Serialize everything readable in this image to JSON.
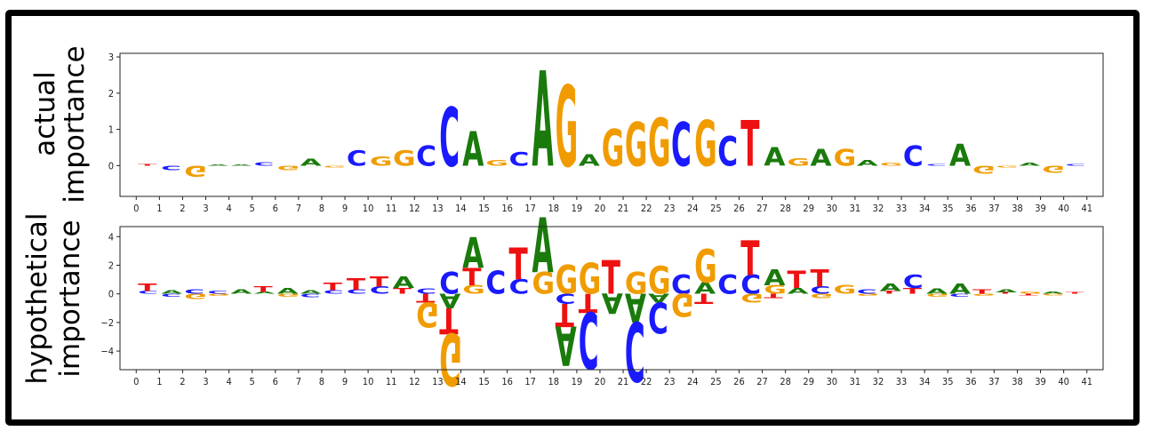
{
  "chart_data": [
    {
      "type": "sequence-logo",
      "ylabel": [
        "actual",
        "importance"
      ],
      "ylim": [
        -0.85,
        3.1
      ],
      "yticks": [
        0,
        1,
        2,
        3
      ],
      "xticks": [
        0,
        1,
        2,
        3,
        4,
        5,
        6,
        7,
        8,
        9,
        10,
        11,
        12,
        13,
        14,
        15,
        16,
        17,
        18,
        19,
        20,
        21,
        22,
        23,
        24,
        25,
        26,
        27,
        28,
        29,
        30,
        31,
        32,
        33,
        34,
        35,
        36,
        37,
        38,
        39,
        40,
        41
      ],
      "positions": [
        {
          "pos": 0,
          "letters": [
            {
              "base": "T",
              "value": 0.04
            }
          ]
        },
        {
          "pos": 1,
          "letters": [
            {
              "base": "C",
              "value": -0.12
            }
          ]
        },
        {
          "pos": 2,
          "letters": [
            {
              "base": "G",
              "value": -0.3
            }
          ]
        },
        {
          "pos": 3,
          "letters": [
            {
              "base": "A",
              "value": 0.03
            }
          ]
        },
        {
          "pos": 4,
          "letters": [
            {
              "base": "A",
              "value": 0.03
            }
          ]
        },
        {
          "pos": 5,
          "letters": [
            {
              "base": "C",
              "value": 0.1
            }
          ]
        },
        {
          "pos": 6,
          "letters": [
            {
              "base": "G",
              "value": -0.12
            }
          ]
        },
        {
          "pos": 7,
          "letters": [
            {
              "base": "A",
              "value": 0.18
            }
          ]
        },
        {
          "pos": 8,
          "letters": [
            {
              "base": "G",
              "value": -0.05
            }
          ]
        },
        {
          "pos": 9,
          "letters": [
            {
              "base": "C",
              "value": 0.42
            }
          ]
        },
        {
          "pos": 10,
          "letters": [
            {
              "base": "G",
              "value": 0.25
            }
          ]
        },
        {
          "pos": 11,
          "letters": [
            {
              "base": "G",
              "value": 0.42
            }
          ]
        },
        {
          "pos": 12,
          "letters": [
            {
              "base": "C",
              "value": 0.55
            }
          ]
        },
        {
          "pos": 13,
          "letters": [
            {
              "base": "C",
              "value": 1.6
            }
          ]
        },
        {
          "pos": 14,
          "letters": [
            {
              "base": "A",
              "value": 0.95
            }
          ]
        },
        {
          "pos": 15,
          "letters": [
            {
              "base": "G",
              "value": 0.15
            }
          ]
        },
        {
          "pos": 16,
          "letters": [
            {
              "base": "C",
              "value": 0.38
            }
          ]
        },
        {
          "pos": 17,
          "letters": [
            {
              "base": "A",
              "value": 2.6
            }
          ]
        },
        {
          "pos": 18,
          "letters": [
            {
              "base": "G",
              "value": 2.2
            }
          ]
        },
        {
          "pos": 19,
          "letters": [
            {
              "base": "A",
              "value": 0.32
            }
          ]
        },
        {
          "pos": 20,
          "letters": [
            {
              "base": "G",
              "value": 1.0
            }
          ]
        },
        {
          "pos": 21,
          "letters": [
            {
              "base": "G",
              "value": 1.2
            }
          ]
        },
        {
          "pos": 22,
          "letters": [
            {
              "base": "G",
              "value": 1.3
            }
          ]
        },
        {
          "pos": 23,
          "letters": [
            {
              "base": "C",
              "value": 1.2
            }
          ]
        },
        {
          "pos": 24,
          "letters": [
            {
              "base": "G",
              "value": 1.25
            }
          ]
        },
        {
          "pos": 25,
          "letters": [
            {
              "base": "C",
              "value": 0.8
            }
          ]
        },
        {
          "pos": 26,
          "letters": [
            {
              "base": "T",
              "value": 1.25
            }
          ]
        },
        {
          "pos": 27,
          "letters": [
            {
              "base": "A",
              "value": 0.5
            }
          ]
        },
        {
          "pos": 28,
          "letters": [
            {
              "base": "G",
              "value": 0.2
            }
          ]
        },
        {
          "pos": 29,
          "letters": [
            {
              "base": "A",
              "value": 0.45
            }
          ]
        },
        {
          "pos": 30,
          "letters": [
            {
              "base": "G",
              "value": 0.45
            }
          ]
        },
        {
          "pos": 31,
          "letters": [
            {
              "base": "A",
              "value": 0.15
            }
          ]
        },
        {
          "pos": 32,
          "letters": [
            {
              "base": "G",
              "value": 0.08
            }
          ]
        },
        {
          "pos": 33,
          "letters": [
            {
              "base": "C",
              "value": 0.55
            }
          ]
        },
        {
          "pos": 34,
          "letters": [
            {
              "base": "C",
              "value": 0.05
            }
          ]
        },
        {
          "pos": 35,
          "letters": [
            {
              "base": "A",
              "value": 0.6
            }
          ]
        },
        {
          "pos": 36,
          "letters": [
            {
              "base": "G",
              "value": -0.22
            }
          ]
        },
        {
          "pos": 37,
          "letters": [
            {
              "base": "G",
              "value": -0.05
            }
          ]
        },
        {
          "pos": 38,
          "letters": [
            {
              "base": "A",
              "value": 0.08
            }
          ]
        },
        {
          "pos": 39,
          "letters": [
            {
              "base": "G",
              "value": -0.18
            }
          ]
        },
        {
          "pos": 40,
          "letters": [
            {
              "base": "C",
              "value": 0.05
            }
          ]
        }
      ]
    },
    {
      "type": "sequence-logo",
      "ylabel": [
        "hypothetical",
        "importance"
      ],
      "ylim": [
        -5.3,
        4.7
      ],
      "yticks": [
        -4,
        -2,
        0,
        2,
        4
      ],
      "xticks": [
        0,
        1,
        2,
        3,
        4,
        5,
        6,
        7,
        8,
        9,
        10,
        11,
        12,
        13,
        14,
        15,
        16,
        17,
        18,
        19,
        20,
        21,
        22,
        23,
        24,
        25,
        26,
        27,
        28,
        29,
        30,
        31,
        32,
        33,
        34,
        35,
        36,
        37,
        38,
        39,
        40,
        41
      ],
      "positions": [
        {
          "pos": 0,
          "letters": [
            {
              "base": "T",
              "value": 0.5
            },
            {
              "base": "C",
              "value": 0.2
            }
          ]
        },
        {
          "pos": 1,
          "letters": [
            {
              "base": "A",
              "value": 0.25
            },
            {
              "base": "C",
              "value": -0.2
            }
          ]
        },
        {
          "pos": 2,
          "letters": [
            {
              "base": "C",
              "value": 0.3
            },
            {
              "base": "G",
              "value": -0.35
            }
          ]
        },
        {
          "pos": 3,
          "letters": [
            {
              "base": "C",
              "value": 0.2
            },
            {
              "base": "G",
              "value": -0.15
            }
          ]
        },
        {
          "pos": 4,
          "letters": [
            {
              "base": "A",
              "value": 0.3
            }
          ]
        },
        {
          "pos": 5,
          "letters": [
            {
              "base": "T",
              "value": 0.4
            },
            {
              "base": "A",
              "value": 0.15
            }
          ]
        },
        {
          "pos": 6,
          "letters": [
            {
              "base": "A",
              "value": 0.4
            },
            {
              "base": "G",
              "value": -0.2
            }
          ]
        },
        {
          "pos": 7,
          "letters": [
            {
              "base": "A",
              "value": 0.25
            },
            {
              "base": "C",
              "value": -0.25
            }
          ]
        },
        {
          "pos": 8,
          "letters": [
            {
              "base": "T",
              "value": 0.5
            },
            {
              "base": "C",
              "value": 0.25
            }
          ]
        },
        {
          "pos": 9,
          "letters": [
            {
              "base": "T",
              "value": 0.8
            },
            {
              "base": "C",
              "value": 0.3
            }
          ]
        },
        {
          "pos": 10,
          "letters": [
            {
              "base": "T",
              "value": 0.7
            },
            {
              "base": "C",
              "value": 0.5
            }
          ]
        },
        {
          "pos": 11,
          "letters": [
            {
              "base": "A",
              "value": 0.8
            },
            {
              "base": "T",
              "value": 0.4
            }
          ]
        },
        {
          "pos": 12,
          "letters": [
            {
              "base": "C",
              "value": 0.35
            },
            {
              "base": "G",
              "value": -1.7
            },
            {
              "base": "T",
              "value": -0.6
            }
          ]
        },
        {
          "pos": 13,
          "letters": [
            {
              "base": "C",
              "value": 1.5
            },
            {
              "base": "A",
              "value": -1.0
            },
            {
              "base": "T",
              "value": -1.8
            },
            {
              "base": "G",
              "value": -3.6
            }
          ]
        },
        {
          "pos": 14,
          "letters": [
            {
              "base": "A",
              "value": 2.1
            },
            {
              "base": "T",
              "value": 1.2
            },
            {
              "base": "G",
              "value": 0.6
            }
          ]
        },
        {
          "pos": 15,
          "letters": [
            {
              "base": "C",
              "value": 1.6
            }
          ]
        },
        {
          "pos": 16,
          "letters": [
            {
              "base": "T",
              "value": 2.2
            },
            {
              "base": "C",
              "value": 1.0
            }
          ]
        },
        {
          "pos": 17,
          "letters": [
            {
              "base": "A",
              "value": 3.8
            },
            {
              "base": "G",
              "value": 1.5
            }
          ]
        },
        {
          "pos": 18,
          "letters": [
            {
              "base": "G",
              "value": 2.0
            },
            {
              "base": "C",
              "value": -0.7
            },
            {
              "base": "T",
              "value": -1.6
            },
            {
              "base": "A",
              "value": -2.7
            }
          ]
        },
        {
          "pos": 19,
          "letters": [
            {
              "base": "G",
              "value": 2.1
            },
            {
              "base": "T",
              "value": -1.3
            },
            {
              "base": "C",
              "value": -3.9
            }
          ]
        },
        {
          "pos": 20,
          "letters": [
            {
              "base": "T",
              "value": 2.3
            },
            {
              "base": "A",
              "value": -1.4
            }
          ]
        },
        {
          "pos": 21,
          "letters": [
            {
              "base": "G",
              "value": 1.5
            },
            {
              "base": "A",
              "value": -2.0
            },
            {
              "base": "C",
              "value": -4.1
            }
          ]
        },
        {
          "pos": 22,
          "letters": [
            {
              "base": "G",
              "value": 1.9
            },
            {
              "base": "A",
              "value": -0.6
            },
            {
              "base": "C",
              "value": -2.1
            }
          ]
        },
        {
          "pos": 23,
          "letters": [
            {
              "base": "C",
              "value": 1.3
            },
            {
              "base": "G",
              "value": -1.6
            }
          ]
        },
        {
          "pos": 24,
          "letters": [
            {
              "base": "G",
              "value": 2.3
            },
            {
              "base": "A",
              "value": 0.8
            },
            {
              "base": "T",
              "value": -0.7
            }
          ]
        },
        {
          "pos": 25,
          "letters": [
            {
              "base": "C",
              "value": 1.3
            }
          ]
        },
        {
          "pos": 26,
          "letters": [
            {
              "base": "T",
              "value": 2.4
            },
            {
              "base": "C",
              "value": 1.3
            },
            {
              "base": "G",
              "value": -0.6
            }
          ]
        },
        {
          "pos": 27,
          "letters": [
            {
              "base": "A",
              "value": 1.1
            },
            {
              "base": "G",
              "value": 0.6
            },
            {
              "base": "T",
              "value": -0.3
            }
          ]
        },
        {
          "pos": 28,
          "letters": [
            {
              "base": "T",
              "value": 1.2
            },
            {
              "base": "A",
              "value": 0.4
            }
          ]
        },
        {
          "pos": 29,
          "letters": [
            {
              "base": "T",
              "value": 1.2
            },
            {
              "base": "C",
              "value": 0.5
            },
            {
              "base": "G",
              "value": -0.3
            }
          ]
        },
        {
          "pos": 30,
          "letters": [
            {
              "base": "G",
              "value": 0.6
            }
          ]
        },
        {
          "pos": 31,
          "letters": [
            {
              "base": "C",
              "value": 0.3
            },
            {
              "base": "G",
              "value": -0.15
            }
          ]
        },
        {
          "pos": 32,
          "letters": [
            {
              "base": "A",
              "value": 0.5
            },
            {
              "base": "T",
              "value": 0.2
            }
          ]
        },
        {
          "pos": 33,
          "letters": [
            {
              "base": "C",
              "value": 0.9
            },
            {
              "base": "T",
              "value": 0.4
            }
          ]
        },
        {
          "pos": 34,
          "letters": [
            {
              "base": "A",
              "value": 0.35
            },
            {
              "base": "G",
              "value": -0.2
            }
          ]
        },
        {
          "pos": 35,
          "letters": [
            {
              "base": "A",
              "value": 0.7
            },
            {
              "base": "C",
              "value": -0.2
            }
          ]
        },
        {
          "pos": 36,
          "letters": [
            {
              "base": "T",
              "value": 0.3
            },
            {
              "base": "G",
              "value": -0.15
            }
          ]
        },
        {
          "pos": 37,
          "letters": [
            {
              "base": "A",
              "value": 0.2
            },
            {
              "base": "T",
              "value": 0.1
            }
          ]
        },
        {
          "pos": 38,
          "letters": [
            {
              "base": "G",
              "value": 0.15
            },
            {
              "base": "T",
              "value": -0.1
            }
          ]
        },
        {
          "pos": 39,
          "letters": [
            {
              "base": "A",
              "value": 0.15
            },
            {
              "base": "G",
              "value": -0.1
            }
          ]
        },
        {
          "pos": 40,
          "letters": [
            {
              "base": "T",
              "value": 0.1
            }
          ]
        }
      ]
    }
  ],
  "colors": {
    "A": "#1a7a0c",
    "C": "#1a1aff",
    "G": "#f09c00",
    "T": "#ee1111",
    "frame": "#000000",
    "axes": "#222222"
  }
}
